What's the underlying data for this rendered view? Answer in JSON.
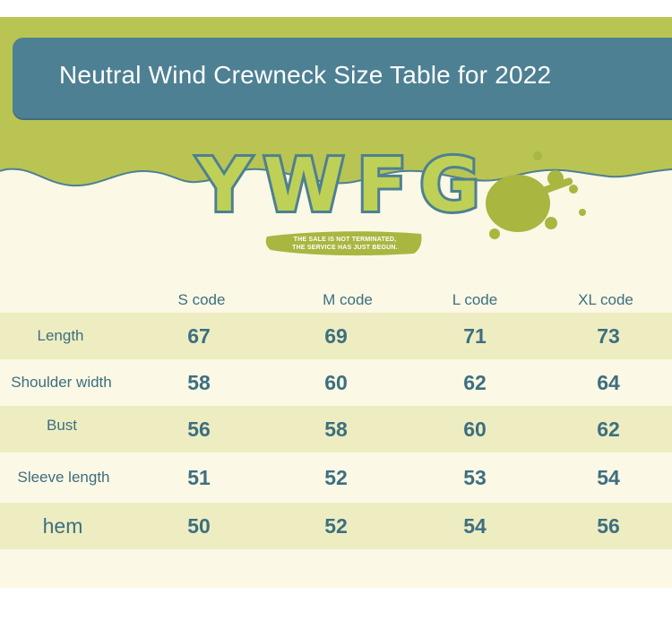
{
  "title": "Neutral Wind Crewneck Size Table for 2022",
  "logo": {
    "text": "YWFG",
    "banner_line1": "THE SALE IS NOT TERMINATED,",
    "banner_line2": "THE SERVICE HAS JUST BEGUN."
  },
  "colors": {
    "teal": "#4d8092",
    "olive": "#b9c453",
    "cream": "#fbf8e6",
    "row_shade": "#eeedc2",
    "text": "#3d6f80"
  },
  "table": {
    "headers": [
      "S code",
      "M code",
      "L code",
      "XL code"
    ],
    "rows": [
      {
        "label": "Length",
        "values": [
          "67",
          "69",
          "71",
          "73"
        ]
      },
      {
        "label": "Shoulder width",
        "values": [
          "58",
          "60",
          "62",
          "64"
        ]
      },
      {
        "label": "Bust",
        "values": [
          "56",
          "58",
          "60",
          "62"
        ]
      },
      {
        "label": "Sleeve length",
        "values": [
          "51",
          "52",
          "53",
          "54"
        ]
      },
      {
        "label": "hem",
        "values": [
          "50",
          "52",
          "54",
          "56"
        ]
      }
    ]
  }
}
